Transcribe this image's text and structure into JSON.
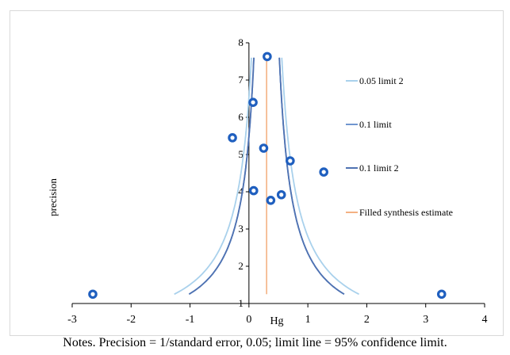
{
  "chart_data": {
    "type": "scatter",
    "title": "",
    "xlabel": "Hg",
    "ylabel": "precision",
    "xlim": [
      -3,
      4
    ],
    "ylim": [
      1,
      8
    ],
    "x_ticks": [
      "-3",
      "-2",
      "-1",
      "0",
      "1",
      "2",
      "3",
      "4"
    ],
    "y_ticks": [
      "1",
      "2",
      "3",
      "4",
      "5",
      "6",
      "7",
      "8"
    ],
    "points": [
      {
        "x": -2.65,
        "y": 1.25
      },
      {
        "x": -0.28,
        "y": 5.45
      },
      {
        "x": 0.07,
        "y": 6.4
      },
      {
        "x": 0.08,
        "y": 4.03
      },
      {
        "x": 0.25,
        "y": 5.17
      },
      {
        "x": 0.31,
        "y": 7.63
      },
      {
        "x": 0.37,
        "y": 3.77
      },
      {
        "x": 0.55,
        "y": 3.92
      },
      {
        "x": 0.7,
        "y": 4.83
      },
      {
        "x": 1.27,
        "y": 4.53
      },
      {
        "x": 3.27,
        "y": 1.25
      }
    ],
    "synthesis_estimate": 0.3,
    "limit_lines": [
      {
        "name": "0.05 limit 2",
        "z": 1.96,
        "color": "#a9d1ec"
      },
      {
        "name": "0.1 limit",
        "z": 1.645,
        "color": "#7096cf"
      },
      {
        "name": "0.1 limit 2",
        "z": 1.645,
        "color": "#4f72b2"
      }
    ],
    "filled_line": {
      "name": "Filled synthesis estimate",
      "color": "#f4b183"
    },
    "legend_position": "right",
    "point_color": "#1f5fbf"
  },
  "note": "Notes. Precision = 1/standard error, 0.05; limit line = 95% confidence limit."
}
